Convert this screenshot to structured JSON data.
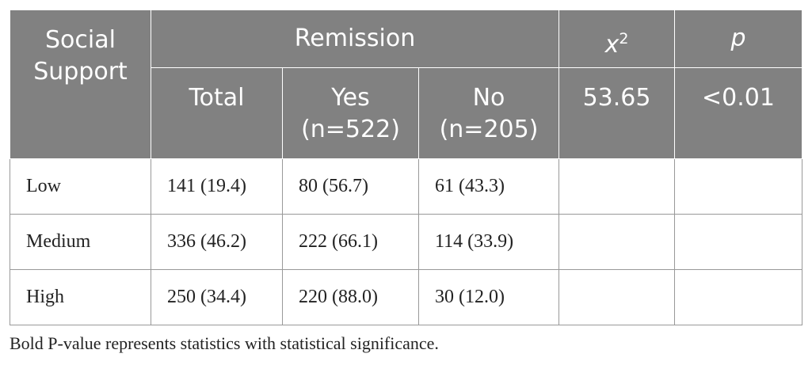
{
  "table": {
    "header": {
      "group_row": [
        "Social Support",
        "Remission"
      ],
      "chi_symbol": "x",
      "chi_sup": "2",
      "p_symbol": "p",
      "sub_row": [
        {
          "label": "Total"
        },
        {
          "label": "Yes",
          "n": "(n=522)"
        },
        {
          "label": "No",
          "n": "(n=205)"
        }
      ],
      "chi_value": "53.65",
      "p_value": "<0.01"
    },
    "rows": [
      [
        "Low",
        "141 (19.4)",
        "80 (56.7)",
        "61 (43.3)"
      ],
      [
        "Medium",
        "336 (46.2)",
        "222 (66.1)",
        "114 (33.9)"
      ],
      [
        "High",
        "250 (34.4)",
        "220 (88.0)",
        "30 (12.0)"
      ]
    ],
    "footnote": "Bold P-value represents statistics with statistical significance."
  }
}
